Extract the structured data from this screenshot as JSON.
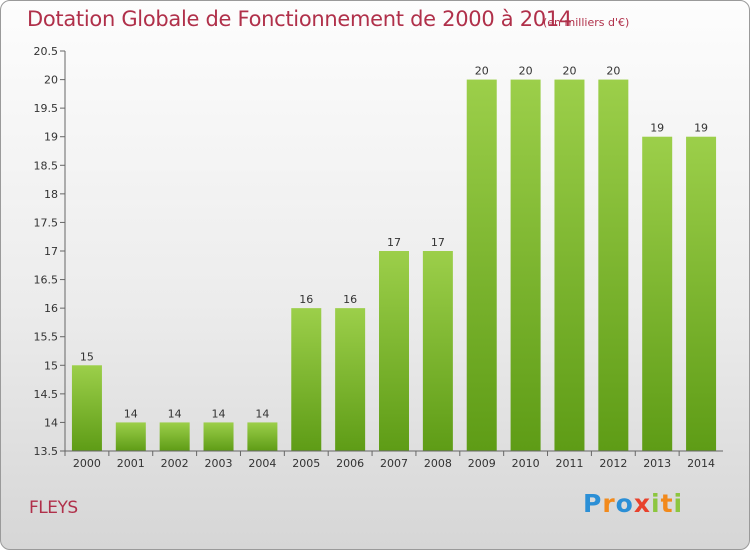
{
  "title": "Dotation Globale de Fonctionnement de 2000 à 2014",
  "unit_note": "(en milliers d'€)",
  "place_name": "FLEYS",
  "logo": {
    "letters": [
      "P",
      "r",
      "o",
      "x",
      "i",
      "t",
      "i"
    ],
    "colors": [
      "#2b8fd6",
      "#f28a1c",
      "#2b8fd6",
      "#e8412c",
      "#8cc63f",
      "#f28a1c",
      "#8cc63f"
    ]
  },
  "chart_data": {
    "type": "bar",
    "categories": [
      "2000",
      "2001",
      "2002",
      "2003",
      "2004",
      "2005",
      "2006",
      "2007",
      "2008",
      "2009",
      "2010",
      "2011",
      "2012",
      "2013",
      "2014"
    ],
    "values": [
      15,
      14,
      14,
      14,
      14,
      16,
      16,
      17,
      17,
      20,
      20,
      20,
      20,
      19,
      19
    ],
    "data_labels": [
      "15",
      "14",
      "14",
      "14",
      "14",
      "16",
      "16",
      "17",
      "17",
      "20",
      "20",
      "20",
      "20",
      "19",
      "19"
    ],
    "ylim": [
      13.5,
      20.5
    ],
    "yticks": [
      "13.5",
      "14",
      "14.5",
      "15",
      "15.5",
      "16",
      "16.5",
      "17",
      "17.5",
      "18",
      "18.5",
      "19",
      "19.5",
      "20",
      "20.5"
    ],
    "title": "Dotation Globale de Fonctionnement de 2000 à 2014",
    "xlabel": "",
    "ylabel": "",
    "grid": false,
    "legend": "none",
    "bar_color_top": "#9ccf4a",
    "bar_color_bottom": "#5e9c16"
  }
}
